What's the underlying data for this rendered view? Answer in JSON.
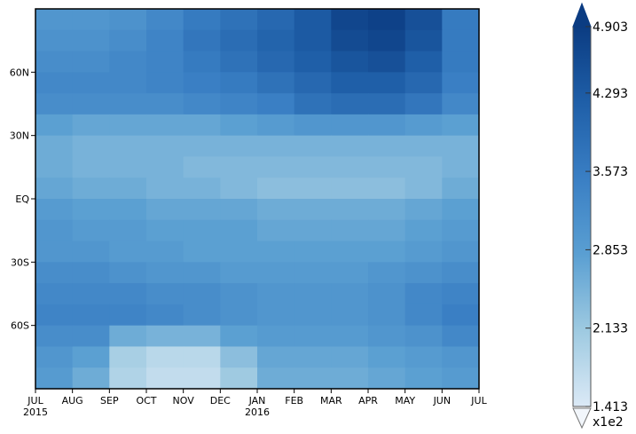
{
  "chart_data": {
    "type": "heatmap",
    "title": "",
    "xlabel": "",
    "ylabel": "",
    "x_ticks": [
      "JUL",
      "AUG",
      "SEP",
      "OCT",
      "NOV",
      "DEC",
      "JAN",
      "FEB",
      "MAR",
      "APR",
      "MAY",
      "JUN",
      "JUL"
    ],
    "x_year_labels": [
      {
        "tick": "JUL",
        "year": "2015"
      },
      {
        "tick": "JAN",
        "year": "2016"
      }
    ],
    "x_range": [
      "2015-07-01",
      "2016-07-01"
    ],
    "y_ticks": [
      "60N",
      "30N",
      "EQ",
      "30S",
      "60S"
    ],
    "y_tick_values": [
      60,
      30,
      0,
      -30,
      -60
    ],
    "y_range": [
      -90,
      90
    ],
    "colorbar": {
      "labels": [
        "4.903",
        "4.293",
        "3.573",
        "2.853",
        "2.133",
        "1.413"
      ],
      "values": [
        4.903,
        4.293,
        3.573,
        2.853,
        2.133,
        1.413
      ],
      "multiplier": "x1e2",
      "min": 1.413,
      "max": 4.903,
      "extend": "both",
      "colors": [
        "#dbe9f6",
        "#9ecae1",
        "#5a9fd2",
        "#3a7fc4",
        "#1f5fa8",
        "#0b3c82"
      ]
    },
    "grid": false,
    "field_by_latitude_and_month": {
      "latitudes": [
        85,
        75,
        65,
        55,
        45,
        35,
        25,
        15,
        5,
        -5,
        -15,
        -25,
        -35,
        -45,
        -55,
        -65,
        -75,
        -85
      ],
      "months": [
        "JUL",
        "AUG",
        "SEP",
        "OCT",
        "NOV",
        "DEC",
        "JAN",
        "FEB",
        "MAR",
        "APR",
        "MAY",
        "JUN"
      ],
      "values_x1e2": [
        [
          3.0,
          3.0,
          3.1,
          3.3,
          3.6,
          3.8,
          4.0,
          4.3,
          4.7,
          4.8,
          4.5,
          3.6
        ],
        [
          3.1,
          3.1,
          3.2,
          3.4,
          3.7,
          3.9,
          4.1,
          4.3,
          4.6,
          4.7,
          4.4,
          3.6
        ],
        [
          3.2,
          3.2,
          3.3,
          3.4,
          3.6,
          3.8,
          4.0,
          4.2,
          4.4,
          4.5,
          4.2,
          3.6
        ],
        [
          3.3,
          3.3,
          3.3,
          3.4,
          3.5,
          3.6,
          3.8,
          4.0,
          4.2,
          4.2,
          4.0,
          3.5
        ],
        [
          3.2,
          3.2,
          3.2,
          3.2,
          3.3,
          3.4,
          3.5,
          3.8,
          3.9,
          3.9,
          3.7,
          3.3
        ],
        [
          2.8,
          2.7,
          2.7,
          2.7,
          2.7,
          2.8,
          2.9,
          3.0,
          3.0,
          3.0,
          2.9,
          2.8
        ],
        [
          2.6,
          2.5,
          2.5,
          2.5,
          2.5,
          2.5,
          2.5,
          2.5,
          2.5,
          2.5,
          2.5,
          2.5
        ],
        [
          2.6,
          2.5,
          2.5,
          2.5,
          2.4,
          2.4,
          2.4,
          2.4,
          2.4,
          2.4,
          2.4,
          2.5
        ],
        [
          2.7,
          2.6,
          2.6,
          2.5,
          2.5,
          2.4,
          2.3,
          2.3,
          2.3,
          2.3,
          2.4,
          2.6
        ],
        [
          2.9,
          2.8,
          2.8,
          2.7,
          2.7,
          2.7,
          2.6,
          2.6,
          2.6,
          2.6,
          2.7,
          2.8
        ],
        [
          3.0,
          2.9,
          2.9,
          2.8,
          2.8,
          2.8,
          2.7,
          2.7,
          2.7,
          2.7,
          2.8,
          2.9
        ],
        [
          3.0,
          3.0,
          2.9,
          2.9,
          2.8,
          2.8,
          2.8,
          2.8,
          2.8,
          2.8,
          2.9,
          3.0
        ],
        [
          3.2,
          3.2,
          3.1,
          3.0,
          3.0,
          2.9,
          2.9,
          2.9,
          2.9,
          3.0,
          3.1,
          3.2
        ],
        [
          3.3,
          3.3,
          3.3,
          3.2,
          3.2,
          3.1,
          3.0,
          3.0,
          3.0,
          3.1,
          3.3,
          3.4
        ],
        [
          3.4,
          3.4,
          3.4,
          3.3,
          3.2,
          3.1,
          3.0,
          3.0,
          3.0,
          3.1,
          3.3,
          3.5
        ],
        [
          3.2,
          3.2,
          2.6,
          2.5,
          2.5,
          2.8,
          2.9,
          2.9,
          2.9,
          3.0,
          3.1,
          3.3
        ],
        [
          3.0,
          2.8,
          2.0,
          1.8,
          1.8,
          2.3,
          2.7,
          2.7,
          2.7,
          2.8,
          2.9,
          3.0
        ],
        [
          2.9,
          2.6,
          1.9,
          1.7,
          1.7,
          2.1,
          2.6,
          2.6,
          2.6,
          2.7,
          2.8,
          2.9
        ]
      ]
    }
  }
}
